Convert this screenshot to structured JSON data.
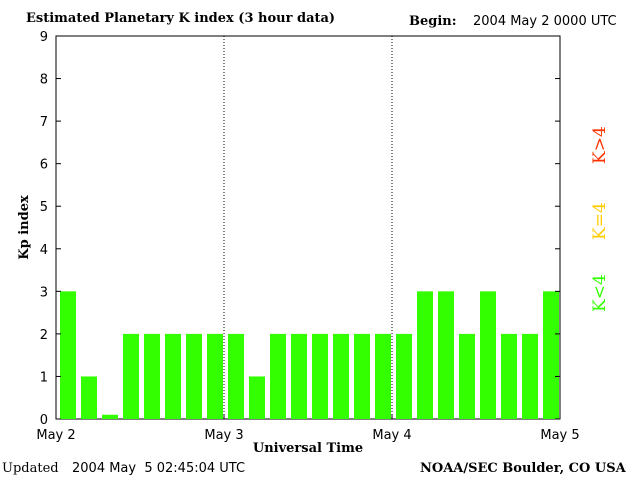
{
  "header": {
    "title": "Estimated Planetary K index (3 hour data)",
    "begin_label": "Begin:",
    "begin_value": "2004 May 2 0000 UTC"
  },
  "footer": {
    "updated_label": "Updated",
    "updated_value": "2004 May  5 02:45:04 UTC",
    "source": "NOAA/SEC Boulder, CO USA"
  },
  "legend": {
    "items": [
      {
        "label": "K<4",
        "color": "#33ff00"
      },
      {
        "label": "K=4",
        "color": "#ffcc00"
      },
      {
        "label": "K>4",
        "color": "#ff3300"
      }
    ]
  },
  "chart_data": {
    "type": "bar",
    "title": "Estimated Planetary K index (3 hour data)",
    "xlabel": "Universal Time",
    "ylabel": "Kp index",
    "ylim": [
      0,
      9
    ],
    "yticks": [
      0,
      1,
      2,
      3,
      4,
      5,
      6,
      7,
      8,
      9
    ],
    "xticks": [
      "May 2",
      "May 3",
      "May 4",
      "May 5"
    ],
    "grid": "dotted vertical lines at day boundaries",
    "interval_hours": 3,
    "values": [
      3,
      1,
      0.1,
      2,
      2,
      2,
      2,
      2,
      2,
      1,
      2,
      2,
      2,
      2,
      2,
      2,
      2,
      3,
      3,
      2,
      3,
      2,
      2,
      3
    ],
    "bar_color": "#33ff00"
  }
}
